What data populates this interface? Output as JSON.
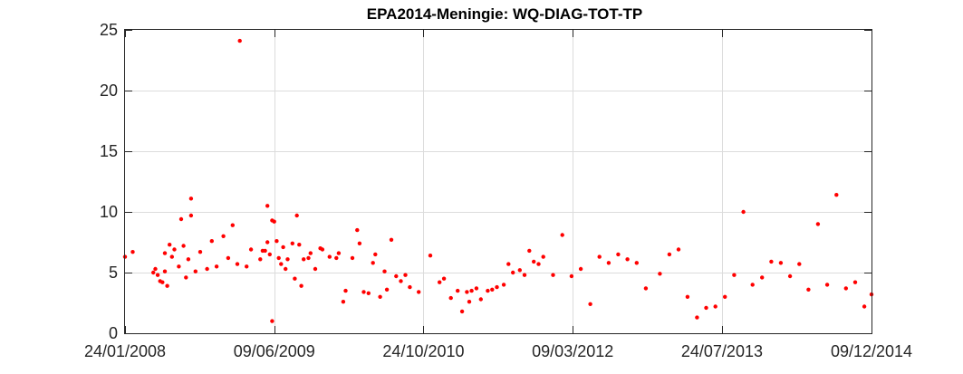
{
  "chart_data": {
    "type": "scatter",
    "title": "EPA2014-Meningie: WQ-DIAG-TOT-TP",
    "xlabel": "",
    "ylabel": "",
    "x_ticks": [
      "24/01/2008",
      "09/06/2009",
      "24/10/2010",
      "09/03/2012",
      "24/07/2013",
      "09/12/2014"
    ],
    "y_ticks": [
      0,
      5,
      10,
      15,
      20,
      25
    ],
    "xlim": [
      "2008-01-24",
      "2014-12-09"
    ],
    "ylim": [
      0,
      25
    ],
    "grid": true,
    "marker_color": "#ff0000",
    "series": [
      {
        "points": [
          [
            "2008-01-24",
            6.3
          ],
          [
            "2008-02-19",
            6.7
          ],
          [
            "2008-04-28",
            5.0
          ],
          [
            "2008-05-05",
            5.3
          ],
          [
            "2008-05-13",
            4.8
          ],
          [
            "2008-05-21",
            4.3
          ],
          [
            "2008-05-29",
            4.2
          ],
          [
            "2008-06-06",
            6.6
          ],
          [
            "2008-06-06",
            5.1
          ],
          [
            "2008-06-14",
            3.9
          ],
          [
            "2008-06-22",
            7.3
          ],
          [
            "2008-06-30",
            6.3
          ],
          [
            "2008-07-08",
            6.9
          ],
          [
            "2008-07-23",
            5.5
          ],
          [
            "2008-07-31",
            9.4
          ],
          [
            "2008-08-08",
            7.2
          ],
          [
            "2008-08-16",
            4.6
          ],
          [
            "2008-08-24",
            6.1
          ],
          [
            "2008-09-02",
            11.1
          ],
          [
            "2008-09-02",
            9.7
          ],
          [
            "2008-09-17",
            5.1
          ],
          [
            "2008-10-03",
            6.7
          ],
          [
            "2008-10-26",
            5.3
          ],
          [
            "2008-11-11",
            7.6
          ],
          [
            "2008-11-27",
            5.5
          ],
          [
            "2008-12-20",
            8.0
          ],
          [
            "2009-01-05",
            6.2
          ],
          [
            "2009-01-20",
            8.9
          ],
          [
            "2009-02-05",
            5.7
          ],
          [
            "2009-02-13",
            24.1
          ],
          [
            "2009-03-08",
            5.5
          ],
          [
            "2009-03-23",
            6.9
          ],
          [
            "2009-04-23",
            6.1
          ],
          [
            "2009-05-01",
            6.8
          ],
          [
            "2009-05-09",
            6.8
          ],
          [
            "2009-05-17",
            10.5
          ],
          [
            "2009-05-17",
            7.5
          ],
          [
            "2009-05-25",
            6.5
          ],
          [
            "2009-06-02",
            1.0
          ],
          [
            "2009-06-02",
            9.3
          ],
          [
            "2009-06-09",
            9.2
          ],
          [
            "2009-06-17",
            7.6
          ],
          [
            "2009-06-24",
            6.2
          ],
          [
            "2009-07-02",
            5.7
          ],
          [
            "2009-07-09",
            7.1
          ],
          [
            "2009-07-17",
            5.3
          ],
          [
            "2009-07-24",
            6.1
          ],
          [
            "2009-08-09",
            7.4
          ],
          [
            "2009-08-17",
            4.5
          ],
          [
            "2009-08-24",
            9.7
          ],
          [
            "2009-09-01",
            7.3
          ],
          [
            "2009-09-08",
            3.9
          ],
          [
            "2009-09-16",
            6.1
          ],
          [
            "2009-10-02",
            6.2
          ],
          [
            "2009-10-09",
            6.6
          ],
          [
            "2009-10-25",
            5.3
          ],
          [
            "2009-11-11",
            7.0
          ],
          [
            "2009-11-18",
            6.9
          ],
          [
            "2009-12-12",
            6.3
          ],
          [
            "2010-01-04",
            6.2
          ],
          [
            "2010-01-12",
            6.6
          ],
          [
            "2010-01-27",
            2.6
          ],
          [
            "2010-02-04",
            3.5
          ],
          [
            "2010-02-27",
            6.2
          ],
          [
            "2010-03-15",
            8.5
          ],
          [
            "2010-03-23",
            7.4
          ],
          [
            "2010-04-06",
            3.4
          ],
          [
            "2010-04-22",
            3.3
          ],
          [
            "2010-05-07",
            5.8
          ],
          [
            "2010-05-15",
            6.5
          ],
          [
            "2010-05-31",
            3.0
          ],
          [
            "2010-06-15",
            5.1
          ],
          [
            "2010-06-23",
            3.6
          ],
          [
            "2010-07-08",
            7.7
          ],
          [
            "2010-07-24",
            4.7
          ],
          [
            "2010-08-09",
            4.3
          ],
          [
            "2010-08-24",
            4.8
          ],
          [
            "2010-09-08",
            3.8
          ],
          [
            "2010-10-08",
            3.4
          ],
          [
            "2010-11-16",
            6.4
          ],
          [
            "2010-12-17",
            4.2
          ],
          [
            "2011-01-01",
            4.5
          ],
          [
            "2011-01-24",
            2.9
          ],
          [
            "2011-02-16",
            3.5
          ],
          [
            "2011-03-03",
            1.8
          ],
          [
            "2011-03-19",
            3.4
          ],
          [
            "2011-03-27",
            2.6
          ],
          [
            "2011-04-04",
            3.5
          ],
          [
            "2011-04-20",
            3.7
          ],
          [
            "2011-05-05",
            2.8
          ],
          [
            "2011-05-28",
            3.5
          ],
          [
            "2011-06-12",
            3.6
          ],
          [
            "2011-06-28",
            3.8
          ],
          [
            "2011-07-21",
            4.0
          ],
          [
            "2011-08-06",
            5.7
          ],
          [
            "2011-08-21",
            5.0
          ],
          [
            "2011-09-13",
            5.2
          ],
          [
            "2011-09-29",
            4.8
          ],
          [
            "2011-10-15",
            6.8
          ],
          [
            "2011-10-30",
            5.9
          ],
          [
            "2011-11-15",
            5.7
          ],
          [
            "2011-12-01",
            6.3
          ],
          [
            "2012-01-03",
            4.8
          ],
          [
            "2012-02-03",
            8.1
          ],
          [
            "2012-03-05",
            4.7
          ],
          [
            "2012-04-05",
            5.3
          ],
          [
            "2012-05-07",
            2.4
          ],
          [
            "2012-06-07",
            6.3
          ],
          [
            "2012-07-08",
            5.8
          ],
          [
            "2012-08-09",
            6.5
          ],
          [
            "2012-09-09",
            6.1
          ],
          [
            "2012-10-10",
            5.8
          ],
          [
            "2012-11-10",
            3.7
          ],
          [
            "2012-12-27",
            4.9
          ],
          [
            "2013-01-28",
            6.5
          ],
          [
            "2013-02-28",
            6.9
          ],
          [
            "2013-03-30",
            3.0
          ],
          [
            "2013-05-01",
            1.3
          ],
          [
            "2013-06-01",
            2.1
          ],
          [
            "2013-07-02",
            2.2
          ],
          [
            "2013-08-03",
            3.0
          ],
          [
            "2013-09-03",
            4.8
          ],
          [
            "2013-10-04",
            10.0
          ],
          [
            "2013-11-04",
            4.0
          ],
          [
            "2013-12-06",
            4.6
          ],
          [
            "2014-01-06",
            5.9
          ],
          [
            "2014-02-07",
            5.8
          ],
          [
            "2014-03-10",
            4.7
          ],
          [
            "2014-04-10",
            5.7
          ],
          [
            "2014-05-11",
            3.6
          ],
          [
            "2014-06-12",
            9.0
          ],
          [
            "2014-07-13",
            4.0
          ],
          [
            "2014-08-13",
            11.4
          ],
          [
            "2014-09-14",
            3.7
          ],
          [
            "2014-10-15",
            4.2
          ],
          [
            "2014-11-15",
            2.2
          ],
          [
            "2014-12-09",
            3.2
          ]
        ]
      }
    ]
  }
}
